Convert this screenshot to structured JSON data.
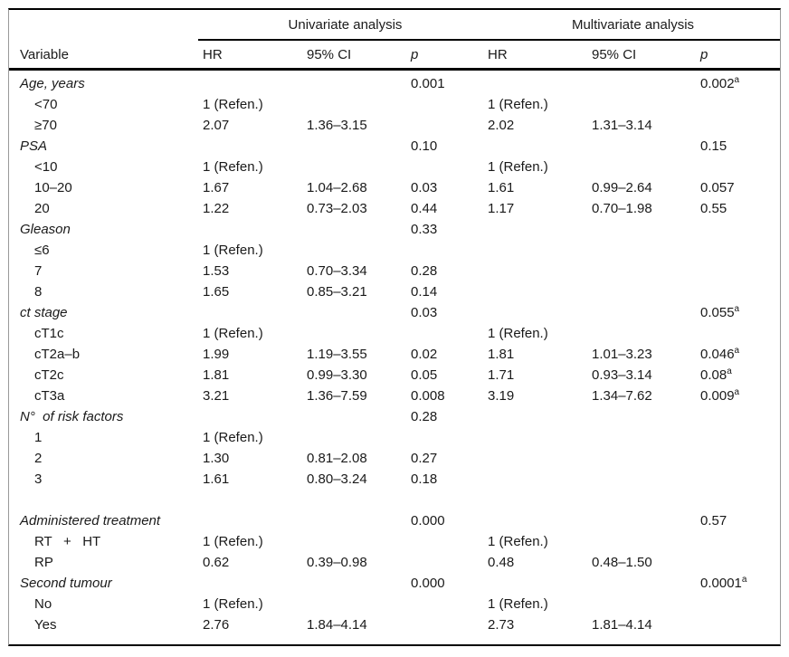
{
  "table": {
    "header": {
      "span_univariate": "Univariate analysis",
      "span_multivariate": "Multivariate analysis",
      "col_variable": "Variable",
      "col_hr": "HR",
      "col_ci": "95% CI",
      "col_p": "p"
    },
    "rows": [
      {
        "type": "group",
        "variable": "Age, years",
        "uni_p": "0.001",
        "multi_p": "0.002",
        "multi_p_sup": "a"
      },
      {
        "type": "item",
        "variable": "<70",
        "uni_hr": "1 (Refen.)",
        "multi_hr": "1 (Refen.)"
      },
      {
        "type": "item",
        "variable": "≥70",
        "uni_hr": "2.07",
        "uni_ci": "1.36–3.15",
        "multi_hr": "2.02",
        "multi_ci": "1.31–3.14"
      },
      {
        "type": "group",
        "variable": "PSA",
        "uni_p": "0.10",
        "multi_p": "0.15"
      },
      {
        "type": "item",
        "variable": "<10",
        "uni_hr": "1 (Refen.)",
        "multi_hr": "1 (Refen.)"
      },
      {
        "type": "item",
        "variable": "10–20",
        "uni_hr": "1.67",
        "uni_ci": "1.04–2.68",
        "uni_p": "0.03",
        "multi_hr": "1.61",
        "multi_ci": "0.99–2.64",
        "multi_p": "0.057"
      },
      {
        "type": "item",
        "variable": "20",
        "uni_hr": "1.22",
        "uni_ci": "0.73–2.03",
        "uni_p": "0.44",
        "multi_hr": "1.17",
        "multi_ci": "0.70–1.98",
        "multi_p": "0.55"
      },
      {
        "type": "group",
        "variable": "Gleason",
        "uni_p": "0.33"
      },
      {
        "type": "item",
        "variable": "≤6",
        "uni_hr": "1 (Refen.)"
      },
      {
        "type": "item",
        "variable": "7",
        "uni_hr": "1.53",
        "uni_ci": "0.70–3.34",
        "uni_p": "0.28"
      },
      {
        "type": "item",
        "variable": "8",
        "uni_hr": "1.65",
        "uni_ci": "0.85–3.21",
        "uni_p": "0.14"
      },
      {
        "type": "group",
        "variable": "ct stage",
        "uni_p": "0.03",
        "multi_p": "0.055",
        "multi_p_sup": "a"
      },
      {
        "type": "item",
        "variable": "cT1c",
        "uni_hr": "1 (Refen.)",
        "multi_hr": "1 (Refen.)"
      },
      {
        "type": "item",
        "variable": "cT2a–b",
        "uni_hr": "1.99",
        "uni_ci": "1.19–3.55",
        "uni_p": "0.02",
        "multi_hr": "1.81",
        "multi_ci": "1.01–3.23",
        "multi_p": "0.046",
        "multi_p_sup": "a"
      },
      {
        "type": "item",
        "variable": "cT2c",
        "uni_hr": "1.81",
        "uni_ci": "0.99–3.30",
        "uni_p": "0.05",
        "multi_hr": "1.71",
        "multi_ci": "0.93–3.14",
        "multi_p": "0.08",
        "multi_p_sup": "a"
      },
      {
        "type": "item",
        "variable": "cT3a",
        "uni_hr": "3.21",
        "uni_ci": "1.36–7.59",
        "uni_p": "0.008",
        "multi_hr": "3.19",
        "multi_ci": "1.34–7.62",
        "multi_p": "0.009",
        "multi_p_sup": "a"
      },
      {
        "type": "group",
        "variable": "N°  of risk factors",
        "uni_p": "0.28"
      },
      {
        "type": "item",
        "variable": "1",
        "uni_hr": "1 (Refen.)"
      },
      {
        "type": "item",
        "variable": "2",
        "uni_hr": "1.30",
        "uni_ci": "0.81–2.08",
        "uni_p": "0.27"
      },
      {
        "type": "item",
        "variable": "3",
        "uni_hr": "1.61",
        "uni_ci": "0.80–3.24",
        "uni_p": "0.18"
      },
      {
        "type": "blank",
        "variable": ""
      },
      {
        "type": "group",
        "variable": "Administered treatment",
        "uni_p": "0.000",
        "multi_p": "0.57"
      },
      {
        "type": "item",
        "variable": "RT   +   HT",
        "uni_hr": "1 (Refen.)",
        "multi_hr": "1 (Refen.)"
      },
      {
        "type": "item",
        "variable": "RP",
        "uni_hr": "0.62",
        "uni_ci": "0.39–0.98",
        "multi_hr": "0.48",
        "multi_ci": "0.48–1.50"
      },
      {
        "type": "group",
        "variable": "Second tumour",
        "uni_p": "0.000",
        "multi_p": "0.0001",
        "multi_p_sup": "a"
      },
      {
        "type": "item",
        "variable": "No",
        "uni_hr": "1 (Refen.)",
        "multi_hr": "1 (Refen.)"
      },
      {
        "type": "item",
        "variable": "Yes",
        "uni_hr": "2.76",
        "uni_ci": "1.84–4.14",
        "multi_hr": "2.73",
        "multi_ci": "1.81–4.14"
      }
    ]
  }
}
